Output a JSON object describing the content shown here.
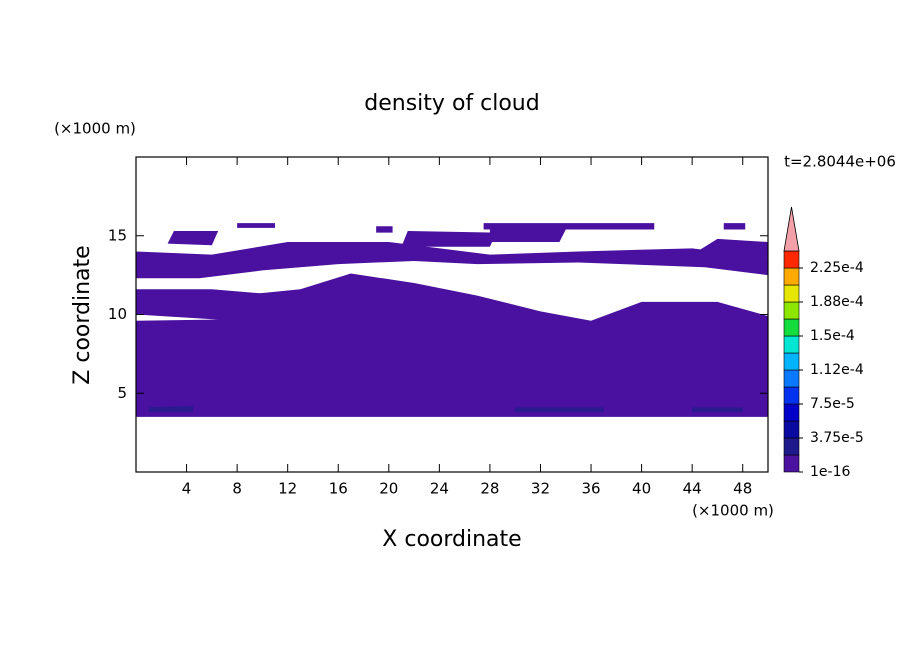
{
  "chart_data": {
    "type": "contour",
    "title": "density of cloud",
    "x_label": "X coordinate",
    "y_label": "Z coordinate",
    "x_unit": "(×1000 m)",
    "y_unit": "(×1000 m)",
    "annotation": "t=2.8044e+06",
    "xlim": [
      0,
      50
    ],
    "ylim": [
      0,
      20
    ],
    "xticks": [
      4,
      8,
      12,
      16,
      20,
      24,
      28,
      32,
      36,
      40,
      44,
      48
    ],
    "yticks": [
      5,
      10,
      15
    ],
    "regions": [
      {
        "color": "#4a10a0",
        "x": [
          0,
          50,
          50,
          46,
          40,
          36,
          32,
          27,
          22,
          17,
          13,
          8,
          8,
          0
        ],
        "z": [
          3.5,
          3.5,
          9.9,
          10.8,
          10.8,
          9.6,
          10.2,
          11.2,
          12,
          12.6,
          11.6,
          11.2,
          9.7,
          9.6
        ]
      },
      {
        "color": "#4a10a0",
        "x": [
          0,
          8,
          13,
          17,
          12,
          6,
          0
        ],
        "z": [
          10,
          9.6,
          9.3,
          10.5,
          11.2,
          11.6,
          11.6
        ]
      },
      {
        "color": "#4a10a0",
        "x": [
          0,
          5,
          10,
          16,
          22,
          27,
          35,
          45,
          50,
          50,
          44,
          35,
          28,
          20,
          12,
          6,
          0
        ],
        "z": [
          12.3,
          12.3,
          12.8,
          13.2,
          13.4,
          13.2,
          13.3,
          13,
          12.5,
          13.6,
          14.2,
          14,
          13.8,
          14.6,
          14.6,
          13.8,
          14
        ]
      },
      {
        "color": "#4a10a0",
        "x": [
          2.5,
          6,
          6.5,
          3
        ],
        "z": [
          14.5,
          14.4,
          15.3,
          15.3
        ]
      },
      {
        "color": "#4a10a0",
        "x": [
          8,
          11,
          11,
          8
        ],
        "z": [
          15.5,
          15.5,
          15.8,
          15.8
        ]
      },
      {
        "color": "#4a10a0",
        "x": [
          19,
          20.3,
          20.3,
          19
        ],
        "z": [
          15.2,
          15.2,
          15.6,
          15.6
        ]
      },
      {
        "color": "#4a10a0",
        "x": [
          21,
          28,
          28.5,
          21.5
        ],
        "z": [
          14.3,
          14.3,
          15.2,
          15.3
        ]
      },
      {
        "color": "#4a10a0",
        "x": [
          27.5,
          41,
          41,
          27.5
        ],
        "z": [
          15.4,
          15.4,
          15.8,
          15.8
        ]
      },
      {
        "color": "#4a10a0",
        "x": [
          28,
          33.5,
          34,
          28
        ],
        "z": [
          14.6,
          14.6,
          15.4,
          15.4
        ]
      },
      {
        "color": "#4a10a0",
        "x": [
          46.5,
          48.2,
          48.2,
          46.5
        ],
        "z": [
          15.4,
          15.4,
          15.8,
          15.8
        ]
      },
      {
        "color": "#4a10a0",
        "x": [
          44,
          50,
          50,
          46
        ],
        "z": [
          13.8,
          13.6,
          14.6,
          14.8
        ]
      },
      {
        "color": "#2a1a90",
        "x": [
          1,
          4.5,
          4.5,
          1
        ],
        "z": [
          3.8,
          3.8,
          4.2,
          4.1
        ]
      },
      {
        "color": "#2a1a90",
        "x": [
          30,
          37,
          37,
          30
        ],
        "z": [
          3.8,
          3.8,
          4.1,
          4.1
        ]
      },
      {
        "color": "#2a1a90",
        "x": [
          44,
          48,
          48,
          44
        ],
        "z": [
          3.8,
          3.8,
          4.1,
          4.1
        ]
      }
    ],
    "colorbar": {
      "levels": [
        1e-16,
        1.875e-05,
        3.75e-05,
        5.625e-05,
        7.5e-05,
        9.375e-05,
        0.0001125,
        0.00013125,
        0.00015,
        0.00016875,
        0.0001875,
        0.00020625,
        0.000225,
        0.00024375
      ],
      "colors": [
        "#4b12a0",
        "#1e1a8c",
        "#0a0aa0",
        "#0000c8",
        "#0032f0",
        "#0a78ff",
        "#00b4ff",
        "#00e6d2",
        "#14dc3c",
        "#8ce600",
        "#e6e600",
        "#ffaa00",
        "#ff2800"
      ],
      "over_color": "#f4a0a8",
      "ticks": [
        {
          "value": 1e-16,
          "label": "1e-16"
        },
        {
          "value": 3.75e-05,
          "label": "3.75e-5"
        },
        {
          "value": 7.5e-05,
          "label": "7.5e-5"
        },
        {
          "value": 0.0001125,
          "label": "1.12e-4"
        },
        {
          "value": 0.00015,
          "label": "1.5e-4"
        },
        {
          "value": 0.0001875,
          "label": "1.88e-4"
        },
        {
          "value": 0.000225,
          "label": "2.25e-4"
        }
      ]
    }
  }
}
